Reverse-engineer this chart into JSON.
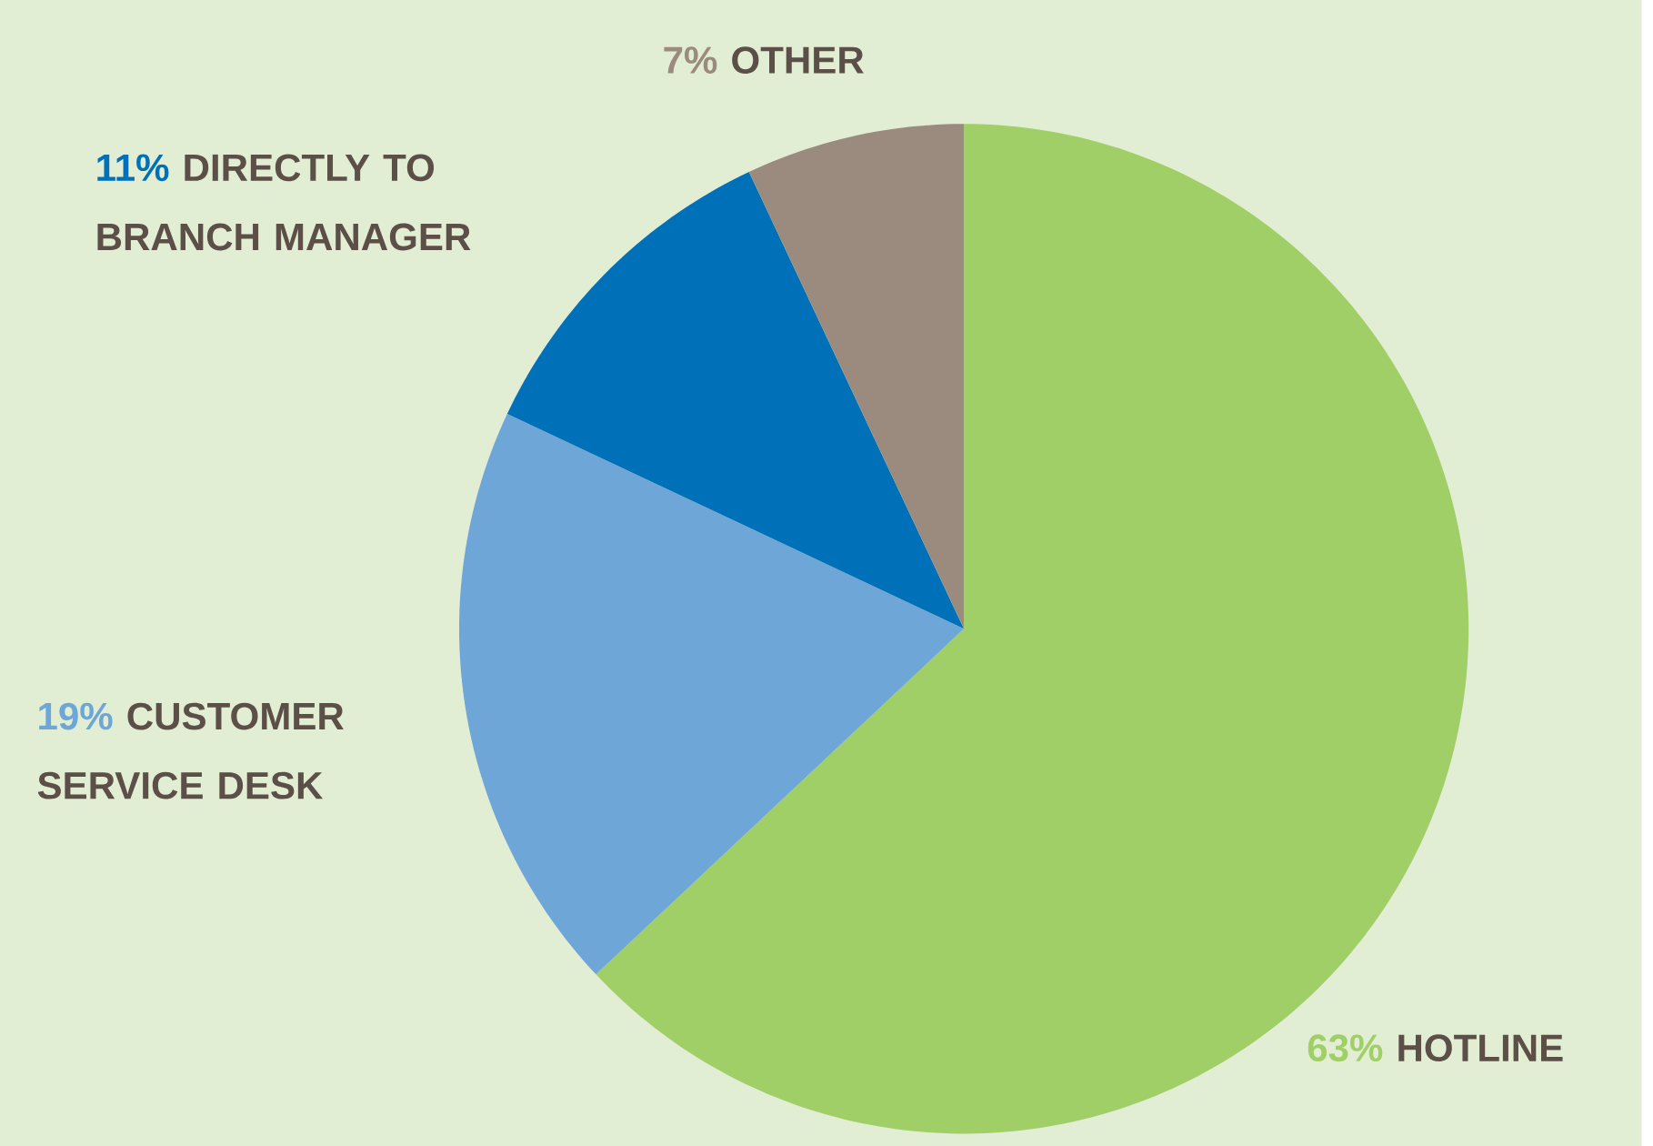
{
  "chart_data": {
    "type": "pie",
    "categories": [
      "HOTLINE",
      "CUSTOMER SERVICE DESK",
      "DIRECTLY TO BRANCH MANAGER",
      "OTHER"
    ],
    "values": [
      63,
      19,
      11,
      7
    ],
    "value_labels": [
      "63%",
      "19%",
      "11%",
      "7%"
    ],
    "colors": [
      "#a0cf67",
      "#6ea6d8",
      "#0070b8",
      "#9a8b7e"
    ]
  }
}
